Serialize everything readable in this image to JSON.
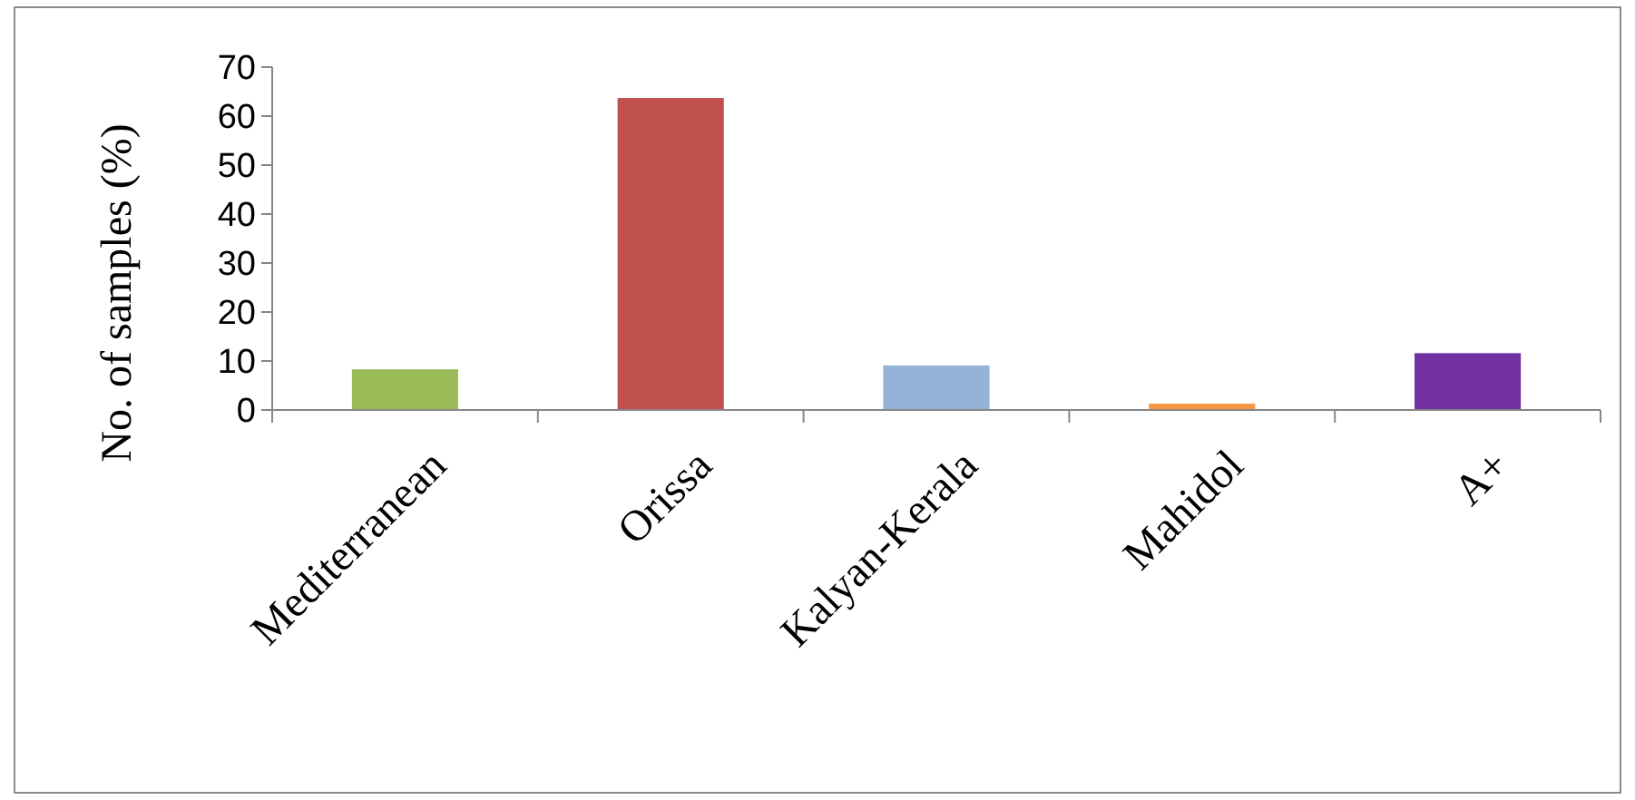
{
  "chart_data": {
    "type": "bar",
    "ylabel": "No. of samples (%)",
    "categories": [
      "Mediterranean",
      "Orissa",
      "Kalyan-Kerala",
      "Mahidol",
      "A+"
    ],
    "values": [
      8.3,
      63.7,
      9.1,
      1.3,
      11.6
    ],
    "colors": [
      "#9bbb59",
      "#c0504d",
      "#95b3d7",
      "#f79646",
      "#7030a0"
    ],
    "ylim": [
      0,
      70
    ],
    "yticks": [
      0,
      10,
      20,
      30,
      40,
      50,
      60,
      70
    ],
    "grid": false
  }
}
